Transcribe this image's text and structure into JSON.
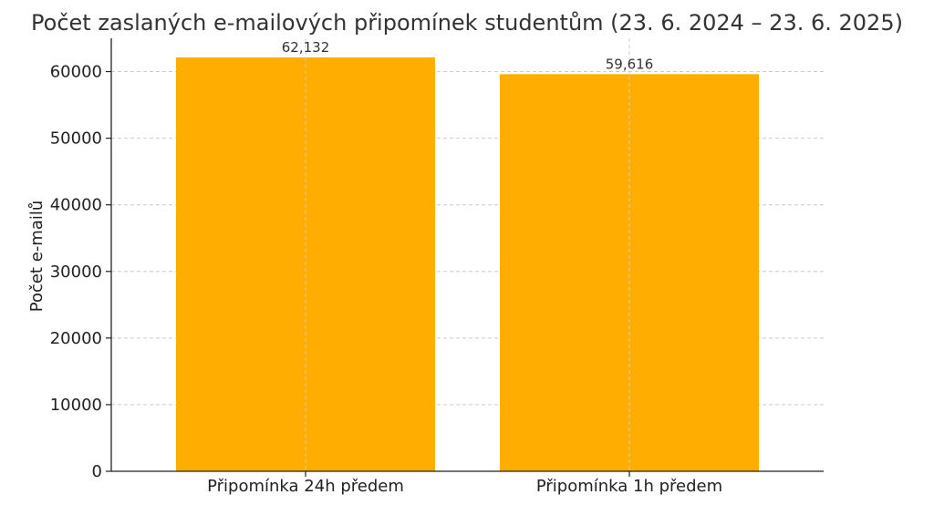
{
  "chart_data": {
    "type": "bar",
    "title": "Počet zaslaných e-mailových připomínek studentům (23. 6. 2024 – 23. 6. 2025)",
    "xlabel": "",
    "ylabel": "Počet e-mailů",
    "categories": [
      "Připomínka 24h předem",
      "Připomínka 1h předem"
    ],
    "values": [
      62132,
      59616
    ],
    "data_labels": [
      "62,132",
      "59,616"
    ],
    "ylim": [
      0,
      65000
    ],
    "yticks": [
      0,
      10000,
      20000,
      30000,
      40000,
      50000,
      60000
    ],
    "ytick_labels": [
      "0",
      "10000",
      "20000",
      "30000",
      "40000",
      "50000",
      "60000"
    ],
    "bar_color": "#FFAE00",
    "grid": true,
    "legend": "none"
  }
}
